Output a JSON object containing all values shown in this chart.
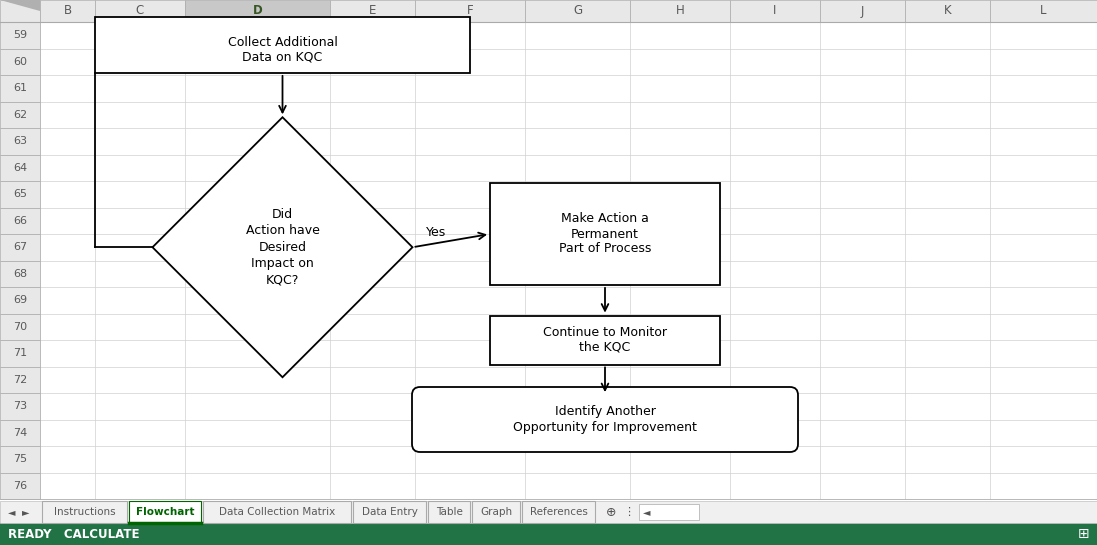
{
  "background_color": "#ffffff",
  "col_labels": [
    "B",
    "C",
    "D",
    "E",
    "F",
    "G",
    "H",
    "I",
    "J",
    "K",
    "L"
  ],
  "row_labels": [
    "59",
    "60",
    "61",
    "62",
    "63",
    "64",
    "65",
    "66",
    "67",
    "68",
    "69",
    "70",
    "71",
    "72",
    "73",
    "74",
    "75",
    "76"
  ],
  "tab_labels": [
    "Instructions",
    "Flowchart",
    "Data Collection Matrix",
    "Data Entry",
    "Table",
    "Graph",
    "References"
  ],
  "active_tab": "Flowchart",
  "active_col": "D",
  "header_bg": "#e8e8e8",
  "active_col_bg": "#c8c8c8",
  "statusbar_text": "READY   CALCULATE",
  "statusbar_bg": "#217346",
  "box1_text": "Collect Additional\nData on KQC",
  "diamond_text": "Did\nAction have\nDesired\nImpact on\nKQC?",
  "yes_label": "Yes",
  "box2_text": "Make Action a\nPermanent\nPart of Process",
  "box3_text": "Continue to Monitor\nthe KQC",
  "box4_text": "Identify Another\nOpportunity for Improvement",
  "line_color": "#000000",
  "header_text_color": "#595959",
  "active_col_text_color": "#375623",
  "grid_color": "#d0d0d0",
  "font_size": 9.0,
  "lw": 1.3
}
